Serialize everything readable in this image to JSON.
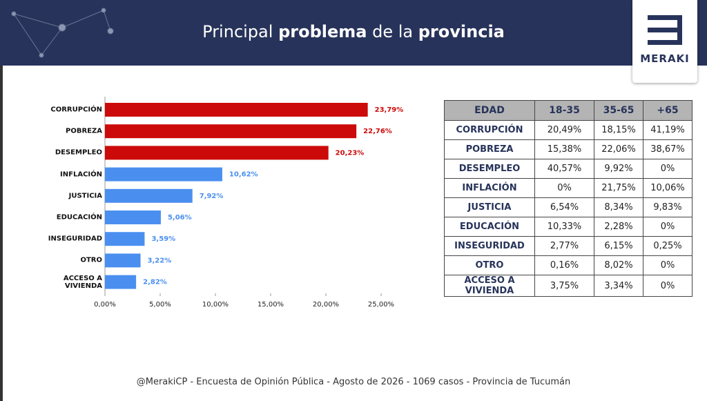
{
  "header": {
    "title_parts": [
      "Principal",
      "problema",
      "de la",
      "provincia"
    ],
    "logo": "MERAKI"
  },
  "chart_data": {
    "type": "hbar",
    "categories": [
      "CORRUPCIÓN",
      "POBREZA",
      "DESEMPLEO",
      "INFLACIÓN",
      "JUSTICIA",
      "EDUCACIÓN",
      "INSEGURIDAD",
      "OTRO",
      "ACCESO A VIVIENDA"
    ],
    "values": [
      23.79,
      22.76,
      20.23,
      10.62,
      7.92,
      5.06,
      3.59,
      3.22,
      2.82
    ],
    "value_labels": [
      "23,79%",
      "22,76%",
      "20,23%",
      "10,62%",
      "7,92%",
      "5,06%",
      "3,59%",
      "3,22%",
      "2,82%"
    ],
    "colors": [
      "#cc0a0a",
      "#cc0a0a",
      "#cc0a0a",
      "#4a8ff0",
      "#4a8ff0",
      "#4a8ff0",
      "#4a8ff0",
      "#4a8ff0",
      "#4a8ff0"
    ],
    "xlim": [
      0,
      25
    ],
    "xticks": [
      {
        "value": 0,
        "label": "0,00%"
      },
      {
        "value": 5,
        "label": "5,00%"
      },
      {
        "value": 10,
        "label": "10,00%"
      },
      {
        "value": 15,
        "label": "15,00%"
      },
      {
        "value": 20,
        "label": "20,00%"
      },
      {
        "value": 25,
        "label": "25,00%"
      }
    ]
  },
  "table": {
    "header": [
      "EDAD",
      "18-35",
      "35-65",
      "+65"
    ],
    "rows": [
      [
        "CORRUPCIÓN",
        "20,49%",
        "18,15%",
        "41,19%"
      ],
      [
        "POBREZA",
        "15,38%",
        "22,06%",
        "38,67%"
      ],
      [
        "DESEMPLEO",
        "40,57%",
        "9,92%",
        "0%"
      ],
      [
        "INFLACIÓN",
        "0%",
        "21,75%",
        "10,06%"
      ],
      [
        "JUSTICIA",
        "6,54%",
        "8,34%",
        "9,83%"
      ],
      [
        "EDUCACIÓN",
        "10,33%",
        "2,28%",
        "0%"
      ],
      [
        "INSEGURIDAD",
        "2,77%",
        "6,15%",
        "0,25%"
      ],
      [
        "OTRO",
        "0,16%",
        "8,02%",
        "0%"
      ],
      [
        "ACCESO A VIVIENDA",
        "3,75%",
        "3,34%",
        "0%"
      ]
    ]
  },
  "footer": "@MerakiCP - Encuesta de Opinión Pública - Agosto de 2026 - 1069 casos - Provincia de Tucumán"
}
